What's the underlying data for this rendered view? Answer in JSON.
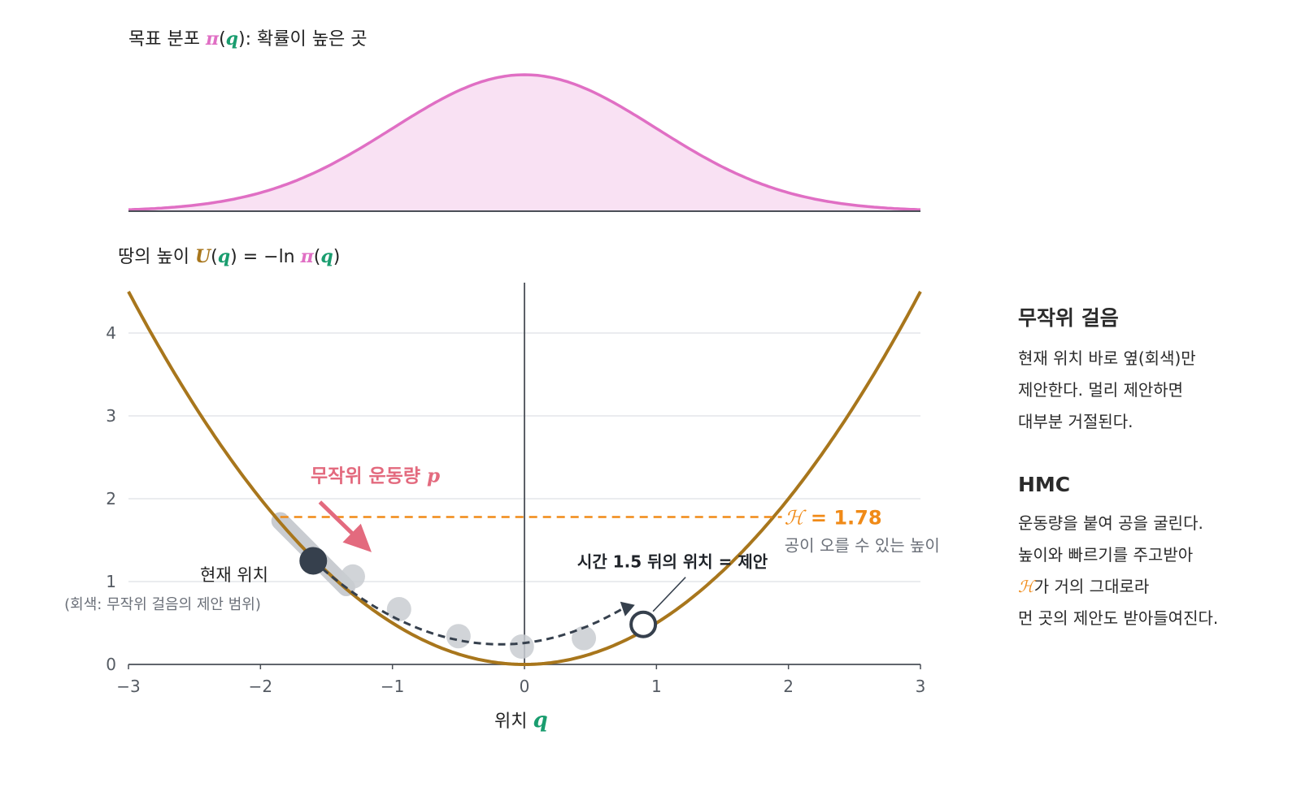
{
  "top_panel": {
    "title_prefix": "목표 분포 ",
    "pi_symbol": "π",
    "q_symbol": "q",
    "title_suffix": ": 확률이 높은 곳",
    "curve_color": "#e06fc4",
    "fill_color": "#f9e1f3"
  },
  "main_panel": {
    "title_prefix": "땅의 높이 ",
    "u_symbol": "U",
    "q_symbol": "q",
    "title_middle": " = −ln ",
    "pi_symbol": "π",
    "x_label_text": "위치 ",
    "x_label_symbol": "q",
    "curve_color": "#a8761c"
  },
  "chart_data": {
    "type": "line",
    "x_ticks": [
      "−3",
      "−2",
      "−1",
      "0",
      "1",
      "2",
      "3"
    ],
    "y_ticks": [
      "0",
      "1",
      "2",
      "3",
      "4"
    ],
    "xlim": [
      -3,
      3
    ],
    "ylim": [
      0,
      4.5
    ],
    "grid": true,
    "potential": "U(q) = q^2 / 2",
    "energy_level": 1.78,
    "current_position": -1.6,
    "proposal_position": 0.9,
    "random_walk_band": [
      -1.85,
      -1.35
    ],
    "ghost_points_x": [
      -1.3,
      -0.95,
      -0.5,
      -0.02,
      0.45
    ],
    "trajectory_min_height": 0.48,
    "annotations": {
      "momentum_label": "무작위 운동량 ",
      "momentum_symbol": "p",
      "energy_symbol": "ℋ",
      "energy_text": " = 1.78",
      "energy_caption": "공이 오를 수 있는 높이",
      "proposal_label": "시간 1.5 뒤의 위치 = 제안",
      "current_label": "현재 위치",
      "current_sublabel": "(회색: 무작위 걸음의 제안 범위)"
    },
    "colors": {
      "potential": "#a8761c",
      "target": "#e06fc4",
      "energy": "#f08a17",
      "momentum": "#e36a7e",
      "ball": "#36404d",
      "ghost": "#c9ccd1"
    }
  },
  "sidebar": {
    "random_walk": {
      "heading": "무작위 걸음",
      "lines": [
        "현재 위치 바로 옆(회색)만",
        "제안한다. 멀리 제안하면",
        "대부분 거절된다."
      ]
    },
    "hmc": {
      "heading": "HMC",
      "line1": "운동량을 붙여 공을 굴린다.",
      "line2": "높이와 빠르기를 주고받아",
      "line3_symbol": "ℋ",
      "line3_rest": "가 거의 그대로라",
      "line4": "먼 곳의 제안도 받아들여진다."
    }
  }
}
